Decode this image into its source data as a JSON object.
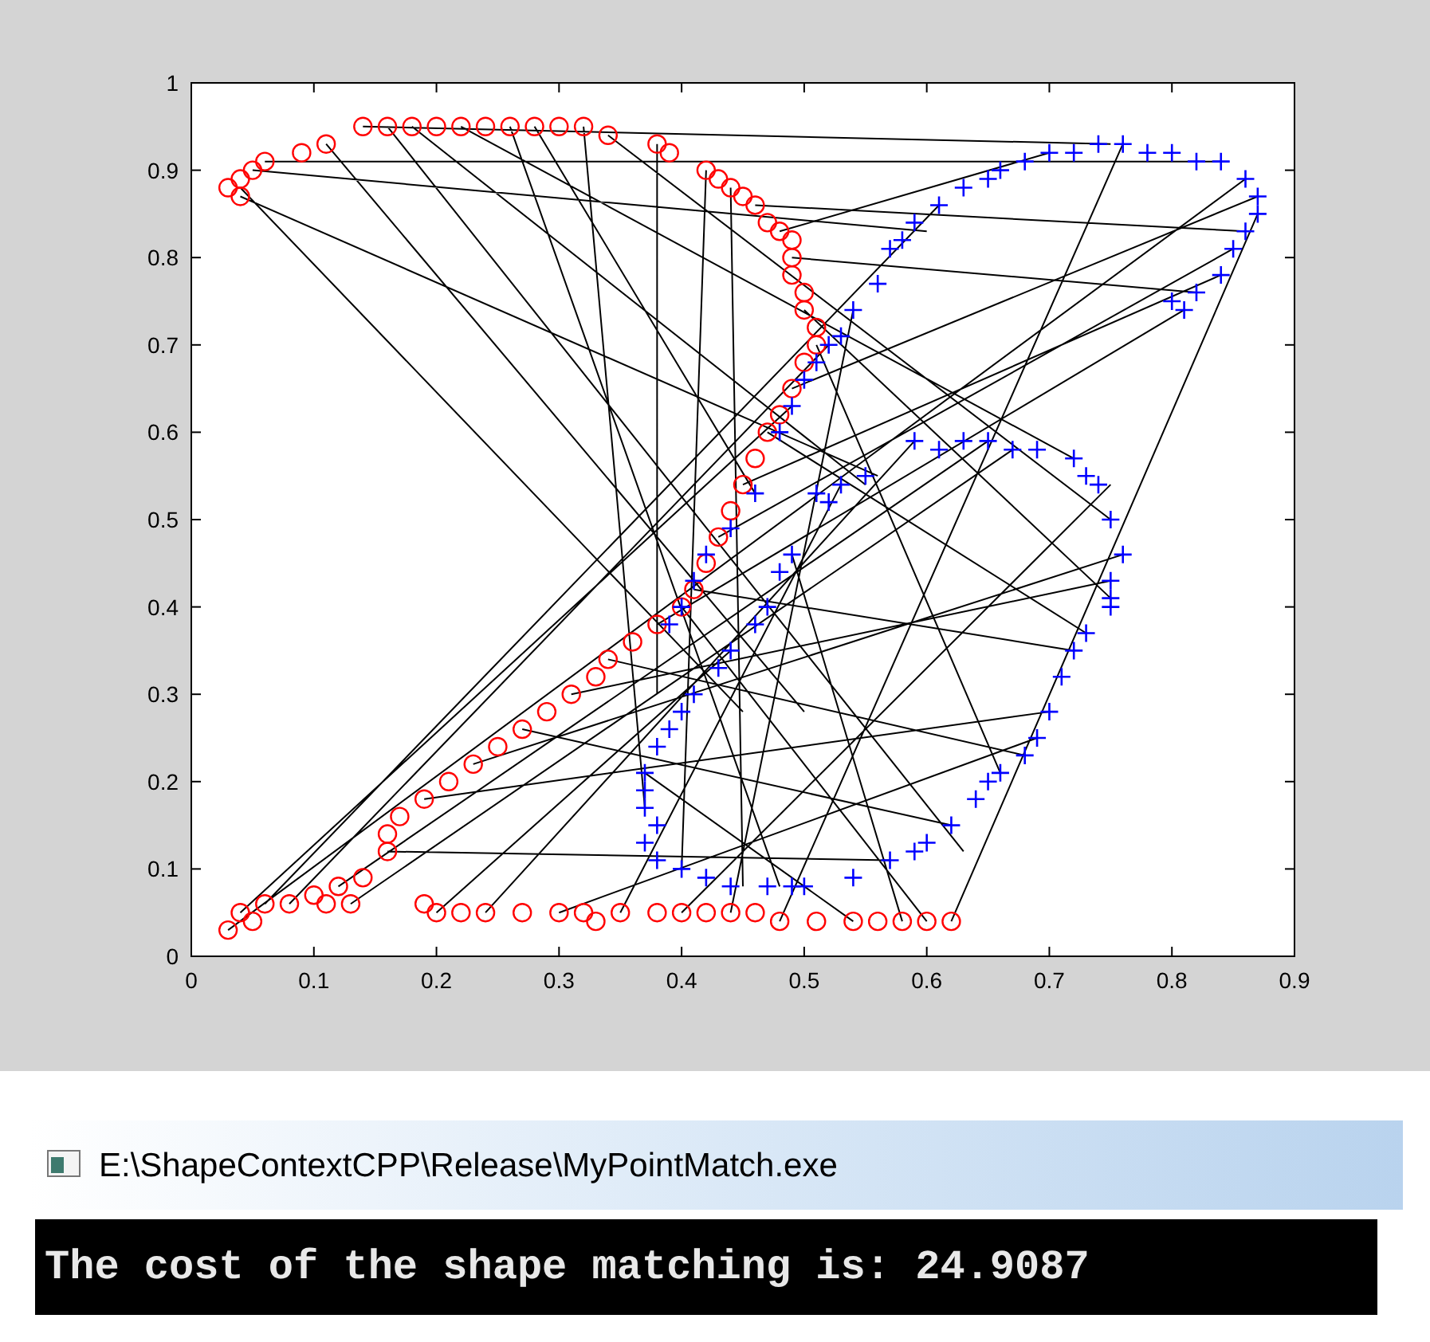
{
  "chart_data": {
    "type": "scatter",
    "xlim": [
      0,
      0.9
    ],
    "ylim": [
      0,
      1
    ],
    "xticks": [
      0,
      0.1,
      0.2,
      0.3,
      0.4,
      0.5,
      0.6,
      0.7,
      0.8,
      0.9
    ],
    "yticks": [
      0,
      0.1,
      0.2,
      0.3,
      0.4,
      0.5,
      0.6,
      0.7,
      0.8,
      0.9,
      1
    ],
    "grid": false,
    "series": [
      {
        "type": "line",
        "color": "#000000",
        "marker": "none",
        "line_style": "solid",
        "x": [
          0.04,
          0.56,
          null,
          0.04,
          0.45,
          null,
          0.05,
          0.6,
          null,
          0.06,
          0.84,
          null,
          0.11,
          0.5,
          null,
          0.14,
          0.75,
          null,
          0.16,
          0.63,
          null,
          0.18,
          0.55,
          null,
          0.22,
          0.72,
          null,
          0.26,
          0.48,
          null,
          0.28,
          0.46,
          null,
          0.32,
          0.37,
          null,
          0.34,
          0.75,
          null,
          0.38,
          0.38,
          null,
          0.42,
          0.4,
          null,
          0.44,
          0.45,
          null,
          0.46,
          0.86,
          null,
          0.48,
          0.7,
          null,
          0.49,
          0.82,
          null,
          0.5,
          0.75,
          null,
          0.51,
          0.66,
          null,
          0.49,
          0.87,
          null,
          0.47,
          0.73,
          null,
          0.45,
          0.84,
          null,
          0.43,
          0.85,
          null,
          0.41,
          0.72,
          null,
          0.38,
          0.81,
          null,
          0.34,
          0.68,
          null,
          0.31,
          0.75,
          null,
          0.27,
          0.62,
          null,
          0.23,
          0.76,
          null,
          0.19,
          0.7,
          null,
          0.16,
          0.57,
          null,
          0.12,
          0.65,
          null,
          0.08,
          0.52,
          null,
          0.06,
          0.61,
          null,
          0.04,
          0.49,
          null,
          0.03,
          0.86,
          null,
          0.13,
          0.67,
          null,
          0.2,
          0.44,
          null,
          0.24,
          0.59,
          null,
          0.3,
          0.69,
          null,
          0.35,
          0.53,
          null,
          0.4,
          0.75,
          null,
          0.44,
          0.54,
          null,
          0.48,
          0.76,
          null,
          0.54,
          0.37,
          null,
          0.58,
          0.49,
          null,
          0.62,
          0.87,
          null,
          0.6,
          0.4
        ],
        "values": [
          0.87,
          0.55,
          null,
          0.88,
          0.28,
          null,
          0.9,
          0.83,
          null,
          0.91,
          0.91,
          null,
          0.93,
          0.28,
          null,
          0.95,
          0.93,
          null,
          0.95,
          0.12,
          null,
          0.95,
          0.54,
          null,
          0.95,
          0.57,
          null,
          0.95,
          0.08,
          null,
          0.95,
          0.53,
          null,
          0.95,
          0.17,
          null,
          0.94,
          0.5,
          null,
          0.93,
          0.3,
          null,
          0.9,
          0.1,
          null,
          0.88,
          0.08,
          null,
          0.86,
          0.83,
          null,
          0.83,
          0.92,
          null,
          0.8,
          0.76,
          null,
          0.74,
          0.41,
          null,
          0.7,
          0.21,
          null,
          0.65,
          0.87,
          null,
          0.6,
          0.37,
          null,
          0.54,
          0.78,
          null,
          0.48,
          0.81,
          null,
          0.42,
          0.35,
          null,
          0.38,
          0.74,
          null,
          0.34,
          0.23,
          null,
          0.3,
          0.43,
          null,
          0.26,
          0.15,
          null,
          0.22,
          0.46,
          null,
          0.18,
          0.28,
          null,
          0.12,
          0.11,
          null,
          0.08,
          0.59,
          null,
          0.06,
          0.7,
          null,
          0.06,
          0.86,
          null,
          0.05,
          0.63,
          null,
          0.03,
          0.89,
          null,
          0.06,
          0.58,
          null,
          0.05,
          0.35,
          null,
          0.05,
          0.59,
          null,
          0.05,
          0.25,
          null,
          0.05,
          0.54,
          null,
          0.05,
          0.54,
          null,
          0.05,
          0.74,
          null,
          0.04,
          0.93,
          null,
          0.04,
          0.21,
          null,
          0.04,
          0.46,
          null,
          0.04,
          0.85,
          null,
          0.04,
          0.4
        ]
      },
      {
        "color": "#ff0000",
        "marker": "circle",
        "x": [
          0.03,
          0.04,
          0.04,
          0.05,
          0.06,
          0.09,
          0.11,
          0.14,
          0.16,
          0.18,
          0.2,
          0.22,
          0.24,
          0.26,
          0.28,
          0.3,
          0.32,
          0.34,
          0.38,
          0.39,
          0.42,
          0.43,
          0.44,
          0.45,
          0.46,
          0.47,
          0.48,
          0.49,
          0.49,
          0.49,
          0.5,
          0.5,
          0.51,
          0.51,
          0.5,
          0.49,
          0.48,
          0.47,
          0.46,
          0.45,
          0.44,
          0.43,
          0.42,
          0.41,
          0.4,
          0.38,
          0.36,
          0.34,
          0.33,
          0.31,
          0.29,
          0.27,
          0.25,
          0.23,
          0.21,
          0.19,
          0.17,
          0.16,
          0.16,
          0.14,
          0.12,
          0.1,
          0.08,
          0.06,
          0.04,
          0.03,
          0.05,
          0.11,
          0.13,
          0.19,
          0.2,
          0.22,
          0.24,
          0.27,
          0.3,
          0.32,
          0.33,
          0.35,
          0.38,
          0.4,
          0.42,
          0.44,
          0.46,
          0.48,
          0.51,
          0.54,
          0.56,
          0.58,
          0.6,
          0.62
        ],
        "values": [
          0.88,
          0.87,
          0.89,
          0.9,
          0.91,
          0.92,
          0.93,
          0.95,
          0.95,
          0.95,
          0.95,
          0.95,
          0.95,
          0.95,
          0.95,
          0.95,
          0.95,
          0.94,
          0.93,
          0.92,
          0.9,
          0.89,
          0.88,
          0.87,
          0.86,
          0.84,
          0.83,
          0.82,
          0.8,
          0.78,
          0.76,
          0.74,
          0.72,
          0.7,
          0.68,
          0.65,
          0.62,
          0.6,
          0.57,
          0.54,
          0.51,
          0.48,
          0.45,
          0.42,
          0.4,
          0.38,
          0.36,
          0.34,
          0.32,
          0.3,
          0.28,
          0.26,
          0.24,
          0.22,
          0.2,
          0.18,
          0.16,
          0.14,
          0.12,
          0.09,
          0.08,
          0.07,
          0.06,
          0.06,
          0.05,
          0.03,
          0.04,
          0.06,
          0.06,
          0.06,
          0.05,
          0.05,
          0.05,
          0.05,
          0.05,
          0.05,
          0.04,
          0.05,
          0.05,
          0.05,
          0.05,
          0.05,
          0.05,
          0.04,
          0.04,
          0.04,
          0.04,
          0.04,
          0.04,
          0.04
        ]
      },
      {
        "color": "#0000ff",
        "marker": "cross",
        "x": [
          0.38,
          0.4,
          0.42,
          0.44,
          0.47,
          0.49,
          0.5,
          0.54,
          0.57,
          0.59,
          0.6,
          0.62,
          0.64,
          0.65,
          0.66,
          0.68,
          0.69,
          0.7,
          0.71,
          0.72,
          0.73,
          0.75,
          0.75,
          0.75,
          0.76,
          0.75,
          0.74,
          0.73,
          0.72,
          0.69,
          0.67,
          0.65,
          0.63,
          0.61,
          0.59,
          0.55,
          0.53,
          0.52,
          0.51,
          0.49,
          0.48,
          0.47,
          0.46,
          0.44,
          0.43,
          0.41,
          0.4,
          0.39,
          0.38,
          0.37,
          0.37,
          0.37,
          0.38,
          0.37,
          0.39,
          0.4,
          0.41,
          0.42,
          0.44,
          0.46,
          0.48,
          0.49,
          0.5,
          0.51,
          0.52,
          0.53,
          0.54,
          0.56,
          0.57,
          0.58,
          0.59,
          0.61,
          0.63,
          0.65,
          0.66,
          0.68,
          0.7,
          0.72,
          0.74,
          0.76,
          0.78,
          0.8,
          0.82,
          0.84,
          0.86,
          0.87,
          0.87,
          0.86,
          0.85,
          0.84,
          0.82,
          0.81,
          0.8
        ],
        "values": [
          0.11,
          0.1,
          0.09,
          0.08,
          0.08,
          0.08,
          0.08,
          0.09,
          0.11,
          0.12,
          0.13,
          0.15,
          0.18,
          0.2,
          0.21,
          0.23,
          0.25,
          0.28,
          0.32,
          0.35,
          0.37,
          0.4,
          0.41,
          0.43,
          0.46,
          0.5,
          0.54,
          0.55,
          0.57,
          0.58,
          0.58,
          0.59,
          0.59,
          0.58,
          0.59,
          0.55,
          0.54,
          0.52,
          0.53,
          0.46,
          0.44,
          0.4,
          0.38,
          0.35,
          0.33,
          0.3,
          0.28,
          0.26,
          0.24,
          0.21,
          0.19,
          0.17,
          0.15,
          0.13,
          0.38,
          0.4,
          0.43,
          0.46,
          0.49,
          0.53,
          0.6,
          0.63,
          0.66,
          0.68,
          0.7,
          0.71,
          0.74,
          0.77,
          0.81,
          0.82,
          0.84,
          0.86,
          0.88,
          0.89,
          0.9,
          0.91,
          0.92,
          0.92,
          0.93,
          0.93,
          0.92,
          0.92,
          0.91,
          0.91,
          0.89,
          0.87,
          0.85,
          0.83,
          0.81,
          0.78,
          0.76,
          0.74,
          0.75
        ]
      }
    ],
    "annotations": [
      "E:\\ShapeContextCPP\\Release\\MyPointMatch.exe",
      "The cost of the shape matching is: 24.9087"
    ]
  }
}
